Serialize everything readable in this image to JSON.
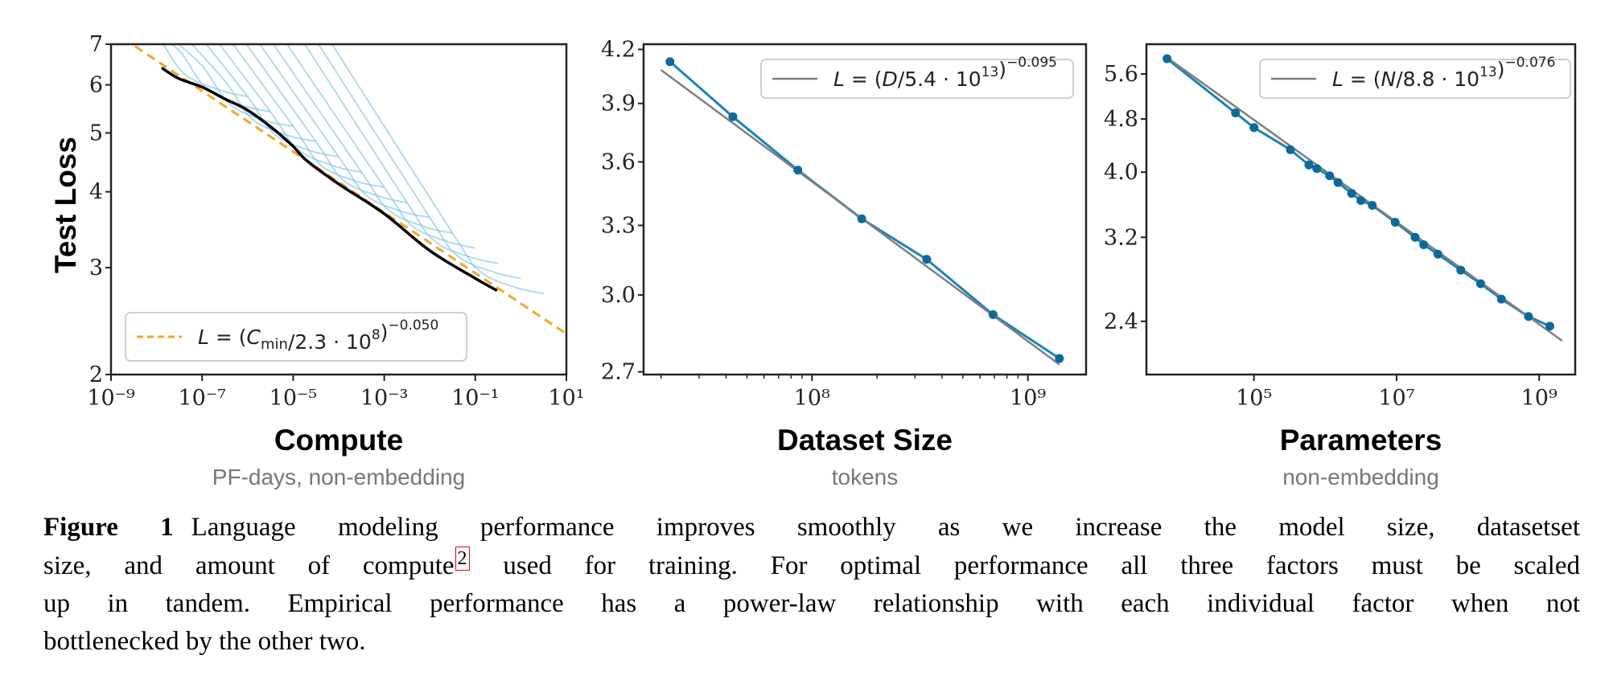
{
  "figure": {
    "y_axis_label": "Test Loss",
    "caption": {
      "label": "Figure 1",
      "line1": "Language modeling performance improves smoothly as we increase the model size, datasetset",
      "line2a": "size, and amount of compute",
      "footnote_marker": "2",
      "line2b": " used for training.  For optimal performance all three factors must be scaled",
      "line3": "up in tandem.  Empirical performance has a power-law relationship with each individual factor when not",
      "line4": "bottlenecked by the other two."
    }
  },
  "colors": {
    "training_curves": "#7fc0e6",
    "frontier": "#000000",
    "fit_compute": "#f5a623",
    "data": "#1a84b8",
    "data_marker": "#0b6a99",
    "fit": "#7f7f7f"
  },
  "chart_data": [
    {
      "type": "line",
      "xlabel": "Compute",
      "xlabel_sub": "PF-days, non-embedding",
      "ylabel": "Test Loss",
      "xscale": "log",
      "yscale": "log",
      "xlim": [
        1e-09,
        10
      ],
      "ylim": [
        2,
        7
      ],
      "xticks": [
        1e-09,
        1e-07,
        1e-05,
        0.001,
        0.1,
        10
      ],
      "xticklabels": [
        "10⁻⁹",
        "10⁻⁷",
        "10⁻⁵",
        "10⁻³",
        "10⁻¹",
        "10¹"
      ],
      "yticks": [
        2,
        3,
        4,
        5,
        6,
        7
      ],
      "yticklabels": [
        "2",
        "3",
        "4",
        "5",
        "6",
        "7"
      ],
      "legend_position": "lower-left",
      "fit": {
        "style": "dashed",
        "coefficient": 230000000.0,
        "exponent": 0.05,
        "x_range": [
          1e-09,
          10
        ],
        "legend": [
          {
            "t": "L",
            "s": "i"
          },
          {
            "t": " = ("
          },
          {
            "t": "C",
            "s": "i"
          },
          {
            "t": "min",
            "s": "sub"
          },
          {
            "t": "/2.3 · 10"
          },
          {
            "t": "8",
            "s": "sup"
          },
          {
            "t": ")"
          },
          {
            "t": "−0.050",
            "s": "sup"
          }
        ]
      },
      "frontier": [
        [
          1.3e-08,
          6.4
        ],
        [
          3e-08,
          6.15
        ],
        [
          1e-07,
          5.95
        ],
        [
          3e-07,
          5.7
        ],
        [
          1e-06,
          5.45
        ],
        [
          4e-06,
          5.05
        ],
        [
          1e-05,
          4.75
        ],
        [
          2e-05,
          4.5
        ],
        [
          0.0001,
          4.12
        ],
        [
          0.001,
          3.68
        ],
        [
          0.01,
          3.2
        ],
        [
          0.1,
          2.88
        ],
        [
          0.3,
          2.75
        ]
      ],
      "training_curves": [
        [
          [
            3.98e-09,
            7.3
          ],
          [
            1e-08,
            7.24
          ],
          [
            3.98e-08,
            6.26
          ],
          [
            2.51e-07,
            5.88
          ],
          [
            1e-06,
            5.74
          ]
        ],
        [
          [
            7.94e-09,
            7.3
          ],
          [
            3.16e-08,
            6.83
          ],
          [
            1.26e-07,
            5.91
          ],
          [
            7.94e-07,
            5.55
          ],
          [
            3.16e-06,
            5.42
          ]
        ],
        [
          [
            1.58e-08,
            7.3
          ],
          [
            1e-07,
            6.45
          ],
          [
            3.98e-07,
            5.58
          ],
          [
            2.51e-06,
            5.24
          ],
          [
            1e-05,
            5.13
          ]
        ],
        [
          [
            3.55e-08,
            7.3
          ],
          [
            3.16e-07,
            6.09
          ],
          [
            1.26e-06,
            5.27
          ],
          [
            7.94e-06,
            4.95
          ],
          [
            3.16e-05,
            4.84
          ]
        ],
        [
          [
            7.94e-08,
            7.3
          ],
          [
            1e-06,
            5.74
          ],
          [
            3.98e-06,
            4.97
          ],
          [
            2.51e-05,
            4.67
          ],
          [
            0.0001,
            4.57
          ]
        ],
        [
          [
            1.58e-07,
            7.3
          ],
          [
            3.16e-06,
            5.42
          ],
          [
            1.26e-05,
            4.7
          ],
          [
            7.94e-05,
            4.41
          ],
          [
            0.000316,
            4.31
          ]
        ],
        [
          [
            3.16e-07,
            7.3
          ],
          [
            1e-05,
            5.13
          ],
          [
            3.98e-05,
            4.43
          ],
          [
            0.000251,
            4.16
          ],
          [
            0.001,
            4.07
          ]
        ],
        [
          [
            6.31e-07,
            7.3
          ],
          [
            3.16e-05,
            4.84
          ],
          [
            0.000126,
            4.18
          ],
          [
            0.000794,
            3.93
          ],
          [
            0.00316,
            3.84
          ]
        ],
        [
          [
            1.26e-06,
            7.3
          ],
          [
            0.0001,
            4.57
          ],
          [
            0.000398,
            3.95
          ],
          [
            0.00251,
            3.71
          ],
          [
            0.01,
            3.63
          ]
        ],
        [
          [
            2.51e-06,
            7.3
          ],
          [
            0.000316,
            4.31
          ],
          [
            0.00126,
            3.73
          ],
          [
            0.00794,
            3.5
          ],
          [
            0.0316,
            3.42
          ]
        ],
        [
          [
            5.01e-06,
            7.3
          ],
          [
            0.001,
            4.07
          ],
          [
            0.00398,
            3.52
          ],
          [
            0.0251,
            3.31
          ],
          [
            0.1,
            3.23
          ]
        ],
        [
          [
            1.26e-05,
            7.3
          ],
          [
            0.00316,
            3.84
          ],
          [
            0.0126,
            3.32
          ],
          [
            0.0794,
            3.12
          ],
          [
            0.316,
            3.05
          ]
        ],
        [
          [
            2.51e-05,
            7.3
          ],
          [
            0.01,
            3.63
          ],
          [
            0.0398,
            3.14
          ],
          [
            0.251,
            2.95
          ],
          [
            1,
            2.88
          ]
        ],
        [
          [
            5.01e-05,
            7.3
          ],
          [
            0.0316,
            3.42
          ],
          [
            0.126,
            2.96
          ],
          [
            0.794,
            2.78
          ],
          [
            3.16,
            2.72
          ]
        ]
      ]
    },
    {
      "type": "line",
      "xlabel": "Dataset Size",
      "xlabel_sub": "tokens",
      "xscale": "log",
      "yscale": "log",
      "xlim": [
        16600000.0,
        1860000000.0
      ],
      "ylim": [
        2.69,
        4.23
      ],
      "xticks": [
        100000000.0,
        1000000000.0
      ],
      "xticklabels": [
        "10⁸",
        "10⁹"
      ],
      "yticks": [
        2.7,
        3.0,
        3.3,
        3.6,
        3.9,
        4.2
      ],
      "yticklabels": [
        "2.7",
        "3.0",
        "3.3",
        "3.6",
        "3.9",
        "4.2"
      ],
      "legend_position": "top-right",
      "fit": {
        "style": "solid",
        "coefficient": 54000000000000.0,
        "exponent": 0.095,
        "x_range": [
          20000000.0,
          1400000000.0
        ],
        "legend": [
          {
            "t": "L",
            "s": "i"
          },
          {
            "t": " = ("
          },
          {
            "t": "D",
            "s": "i"
          },
          {
            "t": "/5.4 · 10"
          },
          {
            "t": "13",
            "s": "sup"
          },
          {
            "t": ")"
          },
          {
            "t": "−0.095",
            "s": "sup"
          }
        ]
      },
      "x": [
        22000000.0,
        43000000.0,
        86000000.0,
        170000000.0,
        340000000.0,
        690000000.0,
        1400000000.0
      ],
      "y": [
        4.13,
        3.83,
        3.56,
        3.33,
        3.15,
        2.92,
        2.75
      ]
    },
    {
      "type": "line",
      "xlabel": "Parameters",
      "xlabel_sub": "non-embedding",
      "xscale": "log",
      "yscale": "log",
      "xlim": [
        3100.0,
        3200000000.0
      ],
      "ylim": [
        2.0,
        6.2
      ],
      "xticks": [
        100000.0,
        10000000.0,
        1000000000.0
      ],
      "xticklabels": [
        "10⁵",
        "10⁷",
        "10⁹"
      ],
      "yticks": [
        2.4,
        3.2,
        4.0,
        4.8,
        5.6
      ],
      "yticklabels": [
        "2.4",
        "3.2",
        "4.0",
        "4.8",
        "5.6"
      ],
      "legend_position": "top-right",
      "fit": {
        "style": "solid",
        "coefficient": 88000000000000.0,
        "exponent": 0.076,
        "x_range": [
          6000.0,
          2100000000.0
        ],
        "legend": [
          {
            "t": "L",
            "s": "i"
          },
          {
            "t": " = ("
          },
          {
            "t": "N",
            "s": "i"
          },
          {
            "t": "/8.8 · 10"
          },
          {
            "t": "13",
            "s": "sup"
          },
          {
            "t": ")"
          },
          {
            "t": "−0.076",
            "s": "sup"
          }
        ]
      },
      "x": [
        6030.0,
        55000.0,
        100000.0,
        324000.0,
        589000.0,
        759000.0,
        1150000.0,
        1510000.0,
        2340000.0,
        3160000.0,
        4570000.0,
        9550000.0,
        18200000.0,
        24000000.0,
        38000000.0,
        79400000.0,
        151000000.0,
        295000000.0,
        708000000.0,
        1410000000.0
      ],
      "y": [
        5.9,
        4.9,
        4.66,
        4.32,
        4.1,
        4.05,
        3.95,
        3.86,
        3.72,
        3.63,
        3.57,
        3.37,
        3.2,
        3.12,
        3.02,
        2.86,
        2.73,
        2.59,
        2.44,
        2.36
      ]
    }
  ]
}
